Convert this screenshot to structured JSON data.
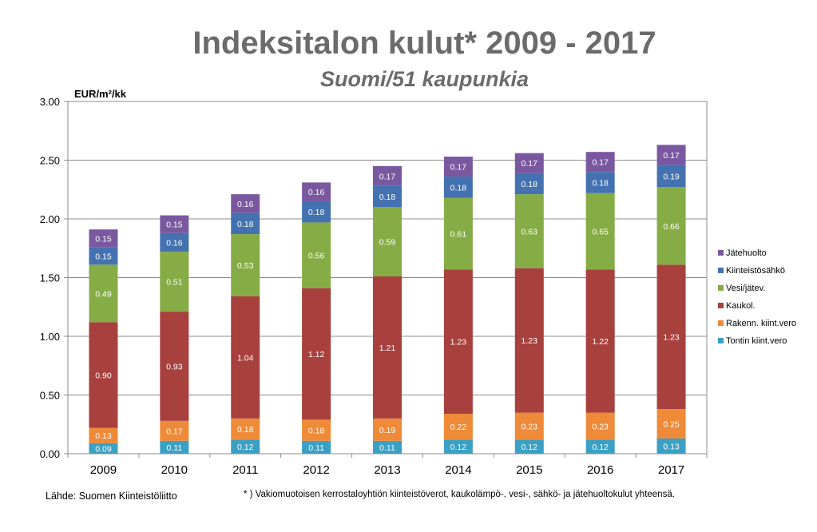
{
  "title": "Indeksitalon kulut* 2009 - 2017",
  "subtitle": "Suomi/51 kaupunkia",
  "unit_label": "EUR/m²/kk",
  "source": "Lähde: Suomen Kiinteistöliitto",
  "footnote": "* ) Vakiomuotoisen kerrostaloyhtiön kiinteistöverot, kaukolämpö-, vesi-, sähkö- ja jätehuoltokulut yhteensä.",
  "colors": {
    "Tontin kiint.vero": "#3aa0c4",
    "Rakenn. kiint.vero": "#ee8a38",
    "Kaukol.": "#a8403e",
    "Vesi/jätev.": "#86ac45",
    "Kiinteistösähkö": "#4472b0",
    "Jätehuolto": "#7a58a0"
  },
  "chart_data": {
    "type": "bar",
    "stacked": true,
    "categories": [
      "2009",
      "2010",
      "2011",
      "2012",
      "2013",
      "2014",
      "2015",
      "2016",
      "2017"
    ],
    "series": [
      {
        "name": "Tontin kiint.vero",
        "values": [
          0.09,
          0.11,
          0.12,
          0.11,
          0.11,
          0.12,
          0.12,
          0.12,
          0.13
        ],
        "labels": [
          "0.09",
          "0.11",
          "0.12",
          "0.11",
          "0.11",
          "0.12",
          "0.12",
          "0.12",
          "0.13"
        ]
      },
      {
        "name": "Rakenn. kiint.vero",
        "values": [
          0.13,
          0.17,
          0.18,
          0.18,
          0.19,
          0.22,
          0.23,
          0.23,
          0.25
        ],
        "labels": [
          "0.13",
          "0.17",
          "0.18",
          "0.18",
          "0.19",
          "0.22",
          "0.23",
          "0.23",
          "0.25"
        ]
      },
      {
        "name": "Kaukol.",
        "values": [
          0.9,
          0.93,
          1.04,
          1.12,
          1.21,
          1.23,
          1.23,
          1.22,
          1.23
        ],
        "labels": [
          "0.90",
          "0.93",
          "1.04",
          "1.12",
          "1.21",
          "1.23",
          "1.23",
          "1.22",
          "1.23"
        ]
      },
      {
        "name": "Vesi/jätev.",
        "values": [
          0.49,
          0.51,
          0.53,
          0.56,
          0.59,
          0.61,
          0.63,
          0.65,
          0.66
        ],
        "labels": [
          "0.49",
          "0.51",
          "0.53",
          "0.56",
          "0.59",
          "0.61",
          "0.63",
          "0.65",
          "0.66"
        ]
      },
      {
        "name": "Kiinteistösähkö",
        "values": [
          0.15,
          0.16,
          0.18,
          0.18,
          0.18,
          0.18,
          0.18,
          0.18,
          0.19
        ],
        "labels": [
          "0.15",
          "0.16",
          "0.18",
          "0.18",
          "0.18",
          "0.18",
          "0.18",
          "0.18",
          "0.19"
        ]
      },
      {
        "name": "Jätehuolto",
        "values": [
          0.15,
          0.15,
          0.16,
          0.16,
          0.17,
          0.17,
          0.17,
          0.17,
          0.17
        ],
        "labels": [
          "0.15",
          "0.15",
          "0.16",
          "0.16",
          "0.17",
          "0.17",
          "0.17",
          "0.17",
          "0.17"
        ]
      }
    ],
    "legend_order": [
      "Jätehuolto",
      "Kiinteistösähkö",
      "Vesi/jätev.",
      "Kaukol.",
      "Rakenn. kiint.vero",
      "Tontin kiint.vero"
    ],
    "ylim": [
      0,
      3
    ],
    "yticks": [
      "0.00",
      "0.50",
      "1.00",
      "1.50",
      "2.00",
      "2.50",
      "3.00"
    ],
    "ylabel": "EUR/m²/kk",
    "grid": true,
    "legend_position": "right"
  }
}
